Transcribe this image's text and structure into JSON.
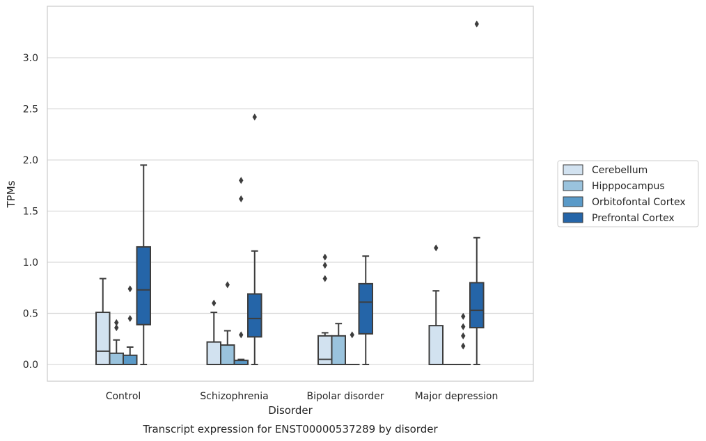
{
  "chart_data": {
    "type": "box",
    "title": "Transcript expression for ENST00000537289 by disorder",
    "xlabel": "Disorder",
    "ylabel": "TPMs",
    "ylim": [
      -0.16,
      3.5
    ],
    "yticks": [
      "0.0",
      "0.5",
      "1.0",
      "1.5",
      "2.0",
      "2.5",
      "3.0"
    ],
    "grid": true,
    "legend_position": "right",
    "categories": [
      "Control",
      "Schizophrenia",
      "Bipolar disorder",
      "Major depression"
    ],
    "series": [
      {
        "name": "Cerebellum",
        "color": "#d2e2f0",
        "boxes": [
          {
            "q1": 0.0,
            "median": 0.13,
            "q3": 0.51,
            "whislo": 0.0,
            "whishi": 0.84,
            "fliers": []
          },
          {
            "q1": 0.0,
            "median": 0.0,
            "q3": 0.22,
            "whislo": 0.0,
            "whishi": 0.51,
            "fliers": [
              0.6
            ]
          },
          {
            "q1": 0.0,
            "median": 0.05,
            "q3": 0.28,
            "whislo": 0.0,
            "whishi": 0.31,
            "fliers": [
              0.84,
              0.97,
              1.05
            ]
          },
          {
            "q1": 0.0,
            "median": 0.0,
            "q3": 0.38,
            "whislo": 0.0,
            "whishi": 0.72,
            "fliers": [
              1.14
            ]
          }
        ]
      },
      {
        "name": "Hipppocampus",
        "color": "#9ac3dd",
        "boxes": [
          {
            "q1": 0.0,
            "median": 0.0,
            "q3": 0.11,
            "whislo": 0.0,
            "whishi": 0.24,
            "fliers": [
              0.36,
              0.41
            ]
          },
          {
            "q1": 0.0,
            "median": 0.0,
            "q3": 0.19,
            "whislo": 0.0,
            "whishi": 0.33,
            "fliers": [
              0.78
            ]
          },
          {
            "q1": 0.0,
            "median": 0.0,
            "q3": 0.28,
            "whislo": 0.0,
            "whishi": 0.4,
            "fliers": []
          },
          {
            "q1": 0.0,
            "median": 0.0,
            "q3": 0.0,
            "whislo": 0.0,
            "whishi": 0.0,
            "fliers": []
          }
        ]
      },
      {
        "name": "Orbitofontal Cortex",
        "color": "#5a9ac8",
        "boxes": [
          {
            "q1": 0.0,
            "median": 0.0,
            "q3": 0.09,
            "whislo": 0.0,
            "whishi": 0.17,
            "fliers": [
              0.45,
              0.74
            ]
          },
          {
            "q1": 0.0,
            "median": 0.0,
            "q3": 0.04,
            "whislo": 0.0,
            "whishi": 0.05,
            "fliers": [
              0.29,
              1.62,
              1.8
            ]
          },
          {
            "q1": 0.0,
            "median": 0.0,
            "q3": 0.0,
            "whislo": 0.0,
            "whishi": 0.0,
            "fliers": [
              0.29
            ]
          },
          {
            "q1": 0.0,
            "median": 0.0,
            "q3": 0.0,
            "whislo": 0.0,
            "whishi": 0.0,
            "fliers": [
              0.18,
              0.28,
              0.37,
              0.47
            ]
          }
        ]
      },
      {
        "name": "Prefrontal Cortex",
        "color": "#2565a8",
        "boxes": [
          {
            "q1": 0.39,
            "median": 0.73,
            "q3": 1.15,
            "whislo": 0.0,
            "whishi": 1.95,
            "fliers": []
          },
          {
            "q1": 0.27,
            "median": 0.45,
            "q3": 0.69,
            "whislo": 0.0,
            "whishi": 1.11,
            "fliers": [
              2.42
            ]
          },
          {
            "q1": 0.3,
            "median": 0.61,
            "q3": 0.79,
            "whislo": 0.0,
            "whishi": 1.06,
            "fliers": []
          },
          {
            "q1": 0.36,
            "median": 0.53,
            "q3": 0.8,
            "whislo": 0.0,
            "whishi": 1.24,
            "fliers": [
              3.33
            ]
          }
        ]
      }
    ]
  }
}
